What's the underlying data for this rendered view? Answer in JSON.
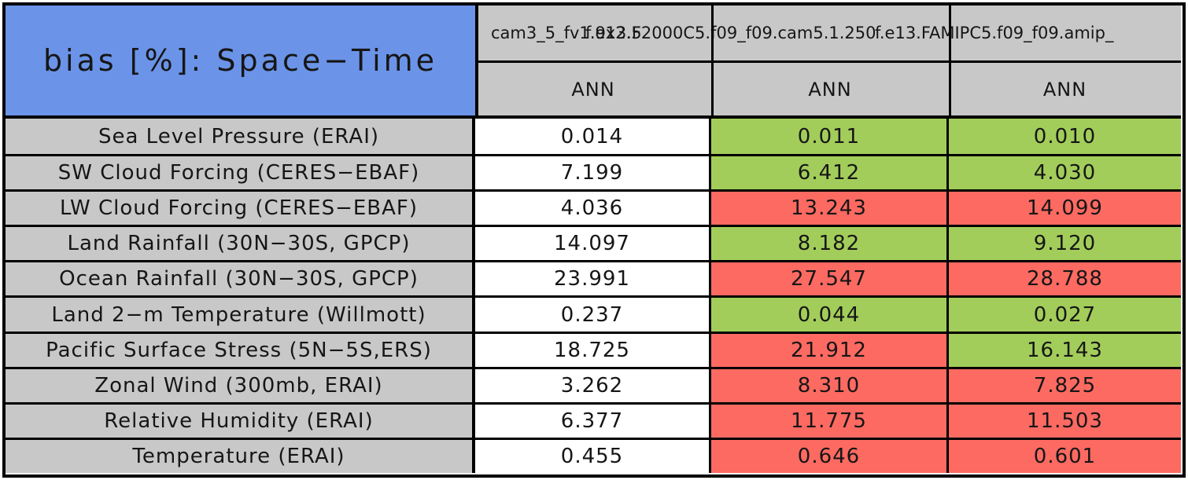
{
  "title": "bias [%]: Space−Time",
  "header": {
    "models": [
      {
        "name": "cam3_5_fv1.9x2.5"
      },
      {
        "name": "f.e13.F2000C5.f09_f09.cam5.1.250"
      },
      {
        "name": "f.e13.FAMIPC5.f09_f09.amip_"
      }
    ],
    "seasons": [
      "ANN",
      "ANN",
      "ANN"
    ]
  },
  "colors": {
    "blue": "#6b94e8",
    "gray": "#c8c8c8",
    "green": "#a3cd5a",
    "red": "#fc6a62"
  },
  "rows": [
    {
      "label": "Sea Level Pressure (ERAI)",
      "values": [
        {
          "text": "0.014",
          "status": "white"
        },
        {
          "text": "0.011",
          "status": "green"
        },
        {
          "text": "0.010",
          "status": "green"
        }
      ]
    },
    {
      "label": "SW Cloud Forcing (CERES−EBAF)",
      "values": [
        {
          "text": "7.199",
          "status": "white"
        },
        {
          "text": "6.412",
          "status": "green"
        },
        {
          "text": "4.030",
          "status": "green"
        }
      ]
    },
    {
      "label": "LW Cloud Forcing (CERES−EBAF)",
      "values": [
        {
          "text": "4.036",
          "status": "white"
        },
        {
          "text": "13.243",
          "status": "red"
        },
        {
          "text": "14.099",
          "status": "red"
        }
      ]
    },
    {
      "label": "Land Rainfall (30N−30S, GPCP)",
      "values": [
        {
          "text": "14.097",
          "status": "white"
        },
        {
          "text": "8.182",
          "status": "green"
        },
        {
          "text": "9.120",
          "status": "green"
        }
      ]
    },
    {
      "label": "Ocean Rainfall (30N−30S, GPCP)",
      "values": [
        {
          "text": "23.991",
          "status": "white"
        },
        {
          "text": "27.547",
          "status": "red"
        },
        {
          "text": "28.788",
          "status": "red"
        }
      ]
    },
    {
      "label": "Land 2−m Temperature (Willmott)",
      "values": [
        {
          "text": "0.237",
          "status": "white"
        },
        {
          "text": "0.044",
          "status": "green"
        },
        {
          "text": "0.027",
          "status": "green"
        }
      ]
    },
    {
      "label": "Pacific Surface Stress (5N−5S,ERS)",
      "values": [
        {
          "text": "18.725",
          "status": "white"
        },
        {
          "text": "21.912",
          "status": "red"
        },
        {
          "text": "16.143",
          "status": "green"
        }
      ]
    },
    {
      "label": "Zonal Wind (300mb, ERAI)",
      "values": [
        {
          "text": "3.262",
          "status": "white"
        },
        {
          "text": "8.310",
          "status": "red"
        },
        {
          "text": "7.825",
          "status": "red"
        }
      ]
    },
    {
      "label": "Relative Humidity (ERAI)",
      "values": [
        {
          "text": "6.377",
          "status": "white"
        },
        {
          "text": "11.775",
          "status": "red"
        },
        {
          "text": "11.503",
          "status": "red"
        }
      ]
    },
    {
      "label": "Temperature (ERAI)",
      "values": [
        {
          "text": "0.455",
          "status": "white"
        },
        {
          "text": "0.646",
          "status": "red"
        },
        {
          "text": "0.601",
          "status": "red"
        }
      ]
    }
  ],
  "chart_data": {
    "type": "table",
    "title": "bias [%]: Space−Time",
    "season": "ANN",
    "categories": [
      "Sea Level Pressure (ERAI)",
      "SW Cloud Forcing (CERES−EBAF)",
      "LW Cloud Forcing (CERES−EBAF)",
      "Land Rainfall (30N−30S, GPCP)",
      "Ocean Rainfall (30N−30S, GPCP)",
      "Land 2−m Temperature (Willmott)",
      "Pacific Surface Stress (5N−5S,ERS)",
      "Zonal Wind (300mb, ERAI)",
      "Relative Humidity (ERAI)",
      "Temperature (ERAI)"
    ],
    "series": [
      {
        "name": "cam3_5_fv1.9x2.5",
        "values": [
          0.014,
          7.199,
          4.036,
          14.097,
          23.991,
          0.237,
          18.725,
          3.262,
          6.377,
          0.455
        ],
        "cell_colors": [
          "white",
          "white",
          "white",
          "white",
          "white",
          "white",
          "white",
          "white",
          "white",
          "white"
        ]
      },
      {
        "name": "f.e13.F2000C5.f09_f09.cam5.1.250",
        "values": [
          0.011,
          6.412,
          13.243,
          8.182,
          27.547,
          0.044,
          21.912,
          8.31,
          11.775,
          0.646
        ],
        "cell_colors": [
          "green",
          "green",
          "red",
          "green",
          "red",
          "green",
          "red",
          "red",
          "red",
          "red"
        ]
      },
      {
        "name": "f.e13.FAMIPC5.f09_f09.amip_",
        "values": [
          0.01,
          4.03,
          14.099,
          9.12,
          28.788,
          0.027,
          16.143,
          7.825,
          11.503,
          0.601
        ],
        "cell_colors": [
          "green",
          "green",
          "red",
          "green",
          "red",
          "green",
          "green",
          "red",
          "red",
          "red"
        ]
      }
    ],
    "layout_hints": {
      "grid": true,
      "header_rows": 2,
      "label_column_bg": "gray",
      "title_cell_bg": "blue"
    }
  }
}
